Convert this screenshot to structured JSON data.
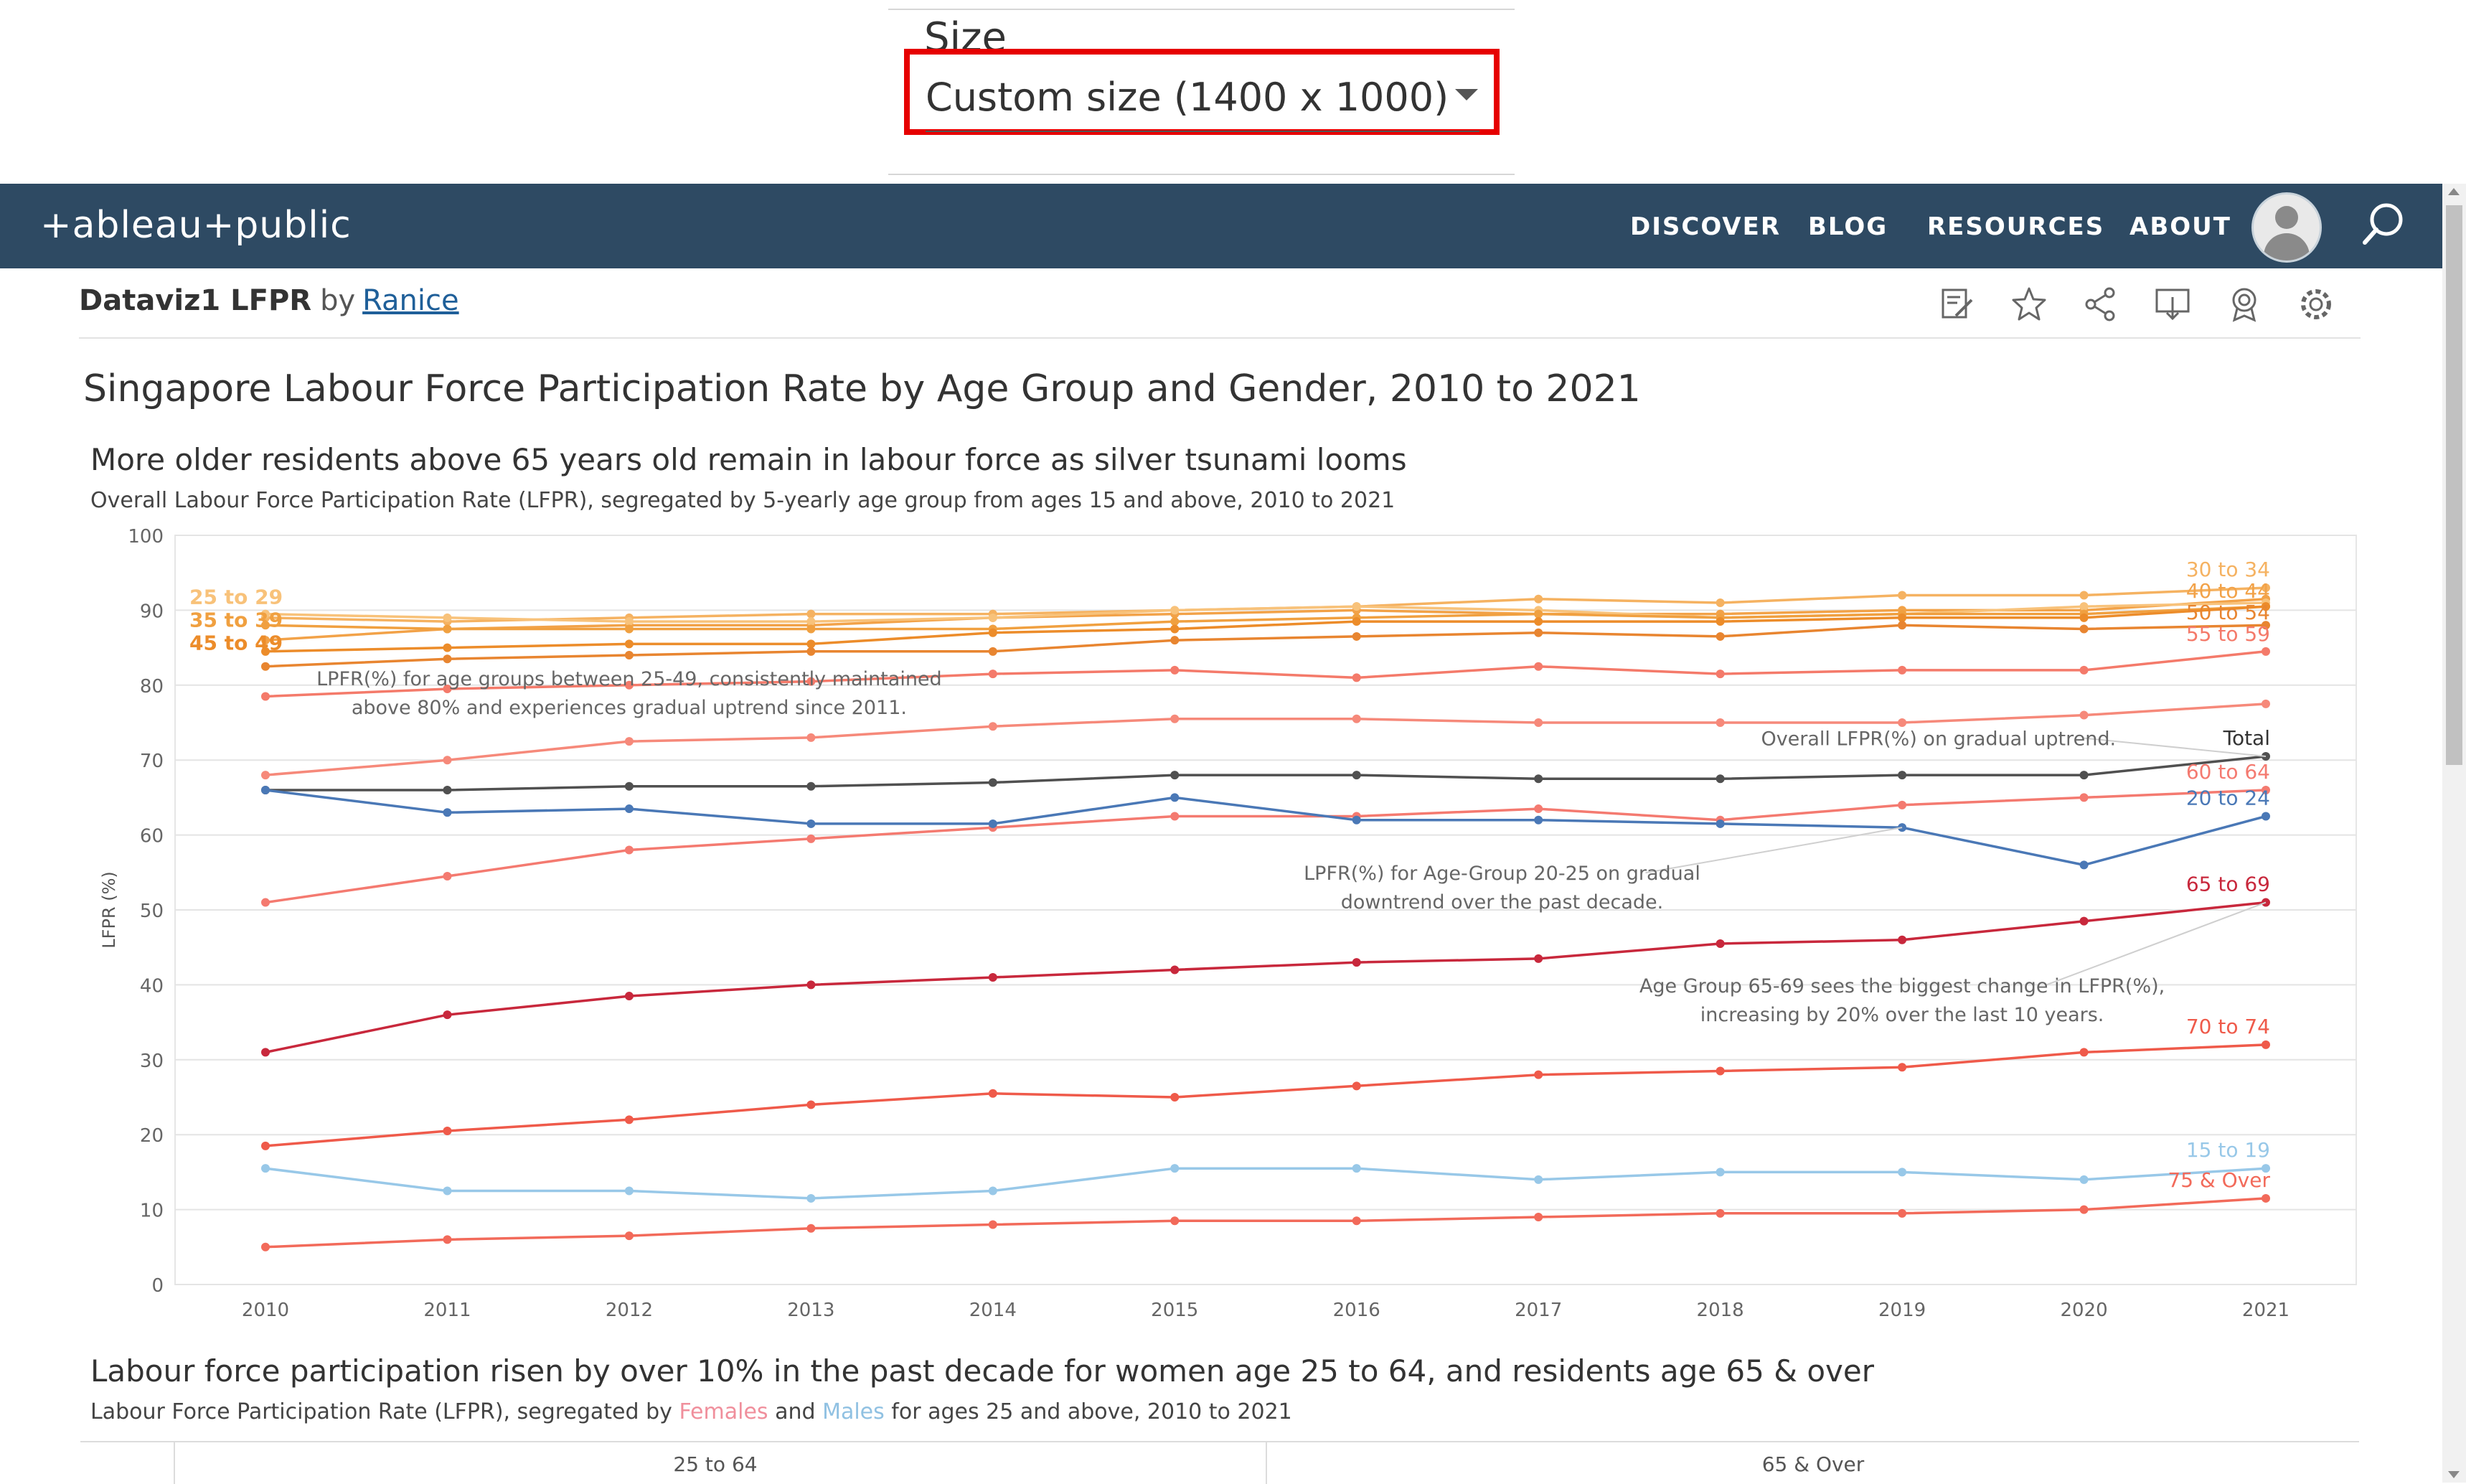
{
  "size_panel": {
    "label": "Size",
    "selected": "Custom size (1400 x 1000)"
  },
  "header": {
    "logo": "+ableau+public",
    "nav": [
      "DISCOVER",
      "BLOG",
      "RESOURCES",
      "ABOUT"
    ]
  },
  "viz": {
    "name": "Dataviz1 LFPR",
    "by": "by",
    "author": "Ranice",
    "toolbar_icons": [
      "edit-icon",
      "star-icon",
      "share-icon",
      "download-icon",
      "badge-icon",
      "gear-icon"
    ]
  },
  "dashboard": {
    "title": "Singapore Labour Force Participation Rate by Age Group and Gender, 2010 to 2021",
    "chart_headline": "More older residents above 65 years old remain in labour force as silver tsunami looms",
    "chart_subtitle": "Overall Labour Force Participation Rate (LFPR), segregated by 5-yearly age group from ages 15 and above, 2010 to 2021",
    "section2_headline": "Labour force participation risen by over 10% in the past decade for women age 25 to 64, and residents age 65 & over",
    "section2_subtitle_pre": "Labour Force Participation Rate (LFPR), segregated by ",
    "section2_subtitle_females": "Females",
    "section2_subtitle_and": " and ",
    "section2_subtitle_males": "Males",
    "section2_subtitle_post": " for ages 25 and above, 2010 to 2021",
    "panels": [
      "25 to 64",
      "65 & Over"
    ]
  },
  "chart_data": {
    "type": "line",
    "ylabel": "LFPR (%)",
    "ylim": [
      0,
      100
    ],
    "yticks": [
      0,
      10,
      20,
      30,
      40,
      50,
      60,
      70,
      80,
      90,
      100
    ],
    "x": [
      2010,
      2011,
      2012,
      2013,
      2014,
      2015,
      2016,
      2017,
      2018,
      2019,
      2020,
      2021
    ],
    "grid": true,
    "series": [
      {
        "name": "30 to 34",
        "label_side": "right",
        "color": "#f5b261",
        "values": [
          89.0,
          88.5,
          89.0,
          89.5,
          89.5,
          90.0,
          90.5,
          91.5,
          91.0,
          92.0,
          92.0,
          93.0
        ]
      },
      {
        "name": "40 to 44",
        "label_side": "right",
        "color": "#f2a248",
        "values": [
          86.0,
          87.5,
          88.0,
          88.0,
          89.0,
          89.5,
          90.0,
          89.5,
          89.5,
          90.0,
          90.0,
          91.5
        ]
      },
      {
        "name": "25 to 29",
        "label_side": "left",
        "color": "#f8c27a",
        "values": [
          89.5,
          89.0,
          88.5,
          88.5,
          89.0,
          90.0,
          90.5,
          90.0,
          89.0,
          89.5,
          90.5,
          91.0
        ]
      },
      {
        "name": "35 to 39",
        "label_side": "left",
        "color": "#f0a040",
        "values": [
          88.0,
          87.5,
          87.5,
          87.5,
          87.5,
          88.5,
          89.0,
          89.5,
          89.0,
          89.5,
          89.5,
          90.5
        ]
      },
      {
        "name": "45 to 49",
        "label_side": "left",
        "color": "#ec8c2a",
        "values": [
          84.5,
          85.0,
          85.5,
          85.5,
          87.0,
          87.5,
          88.5,
          88.5,
          88.5,
          89.0,
          89.0,
          90.5
        ]
      },
      {
        "name": "50 to 54",
        "label_side": "right",
        "color": "#e88530",
        "values": [
          82.5,
          83.5,
          84.0,
          84.5,
          84.5,
          86.0,
          86.5,
          87.0,
          86.5,
          88.0,
          87.5,
          88.0
        ]
      },
      {
        "name": "55 to 59",
        "label_side": "right",
        "color": "#f47a6a",
        "values": [
          78.5,
          79.5,
          80.0,
          80.5,
          81.5,
          82.0,
          81.0,
          82.5,
          81.5,
          82.0,
          82.0,
          84.5
        ]
      },
      {
        "name": "",
        "label_side": "none",
        "color": "#f6897a",
        "values": [
          68.0,
          70.0,
          72.5,
          73.0,
          74.5,
          75.5,
          75.5,
          75.0,
          75.0,
          75.0,
          76.0,
          77.5
        ]
      },
      {
        "name": "Total",
        "label_side": "right",
        "color": "#505050",
        "values": [
          66.0,
          66.0,
          66.5,
          66.5,
          67.0,
          68.0,
          68.0,
          67.5,
          67.5,
          68.0,
          68.0,
          70.5
        ]
      },
      {
        "name": "60 to 64",
        "label_side": "right",
        "color": "#f47a70",
        "values": [
          51.0,
          54.5,
          58.0,
          59.5,
          61.0,
          62.5,
          62.5,
          63.5,
          62.0,
          64.0,
          65.0,
          66.0
        ]
      },
      {
        "name": "20 to 24",
        "label_side": "right",
        "color": "#4a78b6",
        "values": [
          66.0,
          63.0,
          63.5,
          61.5,
          61.5,
          65.0,
          62.0,
          62.0,
          61.5,
          61.0,
          56.0,
          62.5
        ]
      },
      {
        "name": "65 to 69",
        "label_side": "right",
        "color": "#c8283c",
        "values": [
          31.0,
          36.0,
          38.5,
          40.0,
          41.0,
          42.0,
          43.0,
          43.5,
          45.5,
          46.0,
          48.5,
          51.0
        ]
      },
      {
        "name": "70 to 74",
        "label_side": "right",
        "color": "#ef5a4a",
        "values": [
          18.5,
          20.5,
          22.0,
          24.0,
          25.5,
          25.0,
          26.5,
          28.0,
          28.5,
          29.0,
          31.0,
          32.0
        ]
      },
      {
        "name": "15 to 19",
        "label_side": "right",
        "color": "#98c8e8",
        "values": [
          15.5,
          12.5,
          12.5,
          11.5,
          12.5,
          15.5,
          15.5,
          14.0,
          15.0,
          15.0,
          14.0,
          15.5
        ]
      },
      {
        "name": "75 & Over",
        "label_side": "right",
        "color": "#f26a5a",
        "values": [
          5.0,
          6.0,
          6.5,
          7.5,
          8.0,
          8.5,
          8.5,
          9.0,
          9.5,
          9.5,
          10.0,
          11.5
        ]
      }
    ],
    "annotations": [
      {
        "text": [
          "LPFR(%) for age groups between 25-49, consistently maintained",
          "above 80% and experiences gradual uptrend since 2011."
        ],
        "anchor_year": 2012,
        "anchor_value": 80.0,
        "pointer": false
      },
      {
        "text": [
          "Overall LFPR(%) on gradual uptrend."
        ],
        "anchor_year": 2019.2,
        "anchor_value": 72.0,
        "pointer_to_year": 2021,
        "pointer_to_value": 70.5,
        "pointer": true
      },
      {
        "text": [
          "LPFR(%) for Age-Group 20-25 on gradual",
          "downtrend over the past decade."
        ],
        "anchor_year": 2016.8,
        "anchor_value": 54.0,
        "pointer_to_year": 2019,
        "pointer_to_value": 61.0,
        "pointer": true
      },
      {
        "text": [
          "Age Group 65-69 sees the biggest change in LFPR(%),",
          "increasing by 20% over the last 10 years."
        ],
        "anchor_year": 2019.0,
        "anchor_value": 39.0,
        "pointer_to_year": 2021,
        "pointer_to_value": 51.0,
        "pointer": true
      }
    ]
  }
}
